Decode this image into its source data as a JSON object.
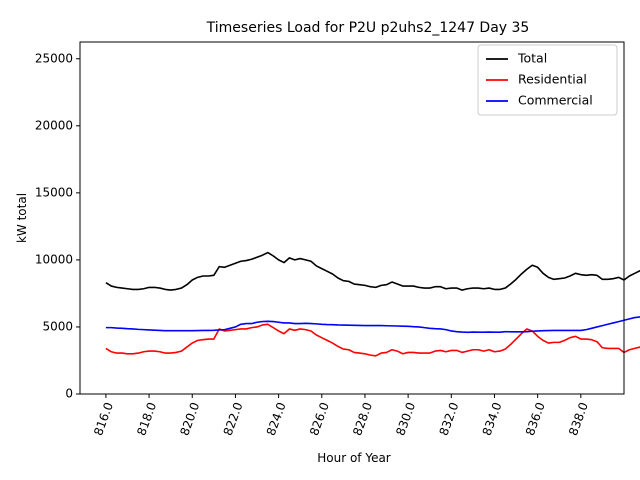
{
  "chart_data": {
    "type": "line",
    "title": "Timeseries Load for P2U p2uhs2_1247  Day 35",
    "xlabel": "Hour of Year",
    "ylabel": "kW total",
    "xlim": [
      814.8,
      840.0
    ],
    "ylim": [
      0,
      26250
    ],
    "x_ticks": [
      816,
      818,
      820,
      822,
      824,
      826,
      828,
      830,
      832,
      834,
      836,
      838
    ],
    "x_tick_labels": [
      "816.0",
      "818.0",
      "820.0",
      "822.0",
      "824.0",
      "826.0",
      "828.0",
      "830.0",
      "832.0",
      "834.0",
      "836.0",
      "838.0"
    ],
    "y_ticks": [
      0,
      5000,
      10000,
      15000,
      20000,
      25000
    ],
    "y_tick_labels": [
      "0",
      "5000",
      "10000",
      "15000",
      "20000",
      "25000"
    ],
    "grid": false,
    "legend_position": "top-right",
    "x_start": 816.0,
    "x_step": 0.25,
    "series": [
      {
        "name": "Total",
        "color": "#000000",
        "values": [
          8300,
          8050,
          7950,
          7900,
          7850,
          7800,
          7800,
          7850,
          7950,
          7950,
          7900,
          7800,
          7750,
          7800,
          7900,
          8150,
          8500,
          8700,
          8800,
          8800,
          8850,
          9500,
          9450,
          9600,
          9750,
          9900,
          9950,
          10050,
          10200,
          10350,
          10550,
          10300,
          10000,
          9800,
          10150,
          10000,
          10100,
          10000,
          9900,
          9550,
          9350,
          9150,
          8950,
          8650,
          8450,
          8400,
          8200,
          8150,
          8100,
          8000,
          7950,
          8100,
          8150,
          8350,
          8200,
          8050,
          8050,
          8050,
          7950,
          7900,
          7900,
          8000,
          8000,
          7850,
          7900,
          7900,
          7750,
          7850,
          7900,
          7900,
          7850,
          7900,
          7800,
          7800,
          7900,
          8200,
          8550,
          8950,
          9300,
          9600,
          9450,
          9000,
          8700,
          8550,
          8600,
          8650,
          8800,
          9000,
          8900,
          8850,
          8900,
          8850,
          8550,
          8550,
          8600,
          8700,
          8500,
          8800,
          9000,
          9200
        ]
      },
      {
        "name": "Residential",
        "color": "#ff0000",
        "values": [
          3400,
          3150,
          3050,
          3050,
          3000,
          3000,
          3050,
          3150,
          3200,
          3200,
          3150,
          3050,
          3050,
          3100,
          3200,
          3500,
          3800,
          4000,
          4050,
          4100,
          4100,
          4850,
          4700,
          4750,
          4800,
          4850,
          4850,
          4950,
          5000,
          5150,
          5200,
          4950,
          4700,
          4500,
          4850,
          4750,
          4850,
          4800,
          4700,
          4400,
          4200,
          4000,
          3800,
          3550,
          3350,
          3300,
          3100,
          3050,
          3000,
          2900,
          2850,
          3050,
          3100,
          3300,
          3200,
          3000,
          3100,
          3100,
          3050,
          3050,
          3050,
          3200,
          3250,
          3150,
          3250,
          3250,
          3100,
          3200,
          3300,
          3300,
          3200,
          3300,
          3150,
          3200,
          3350,
          3700,
          4100,
          4500,
          4850,
          4700,
          4300,
          4000,
          3800,
          3850,
          3850,
          4000,
          4200,
          4300,
          4100,
          4100,
          4050,
          3900,
          3450,
          3400,
          3400,
          3400,
          3100,
          3300,
          3400,
          3500
        ]
      },
      {
        "name": "Commercial",
        "color": "#0000ff",
        "values": [
          4950,
          4950,
          4920,
          4900,
          4870,
          4850,
          4820,
          4800,
          4780,
          4760,
          4740,
          4720,
          4720,
          4720,
          4720,
          4720,
          4720,
          4730,
          4740,
          4740,
          4750,
          4780,
          4800,
          4900,
          5000,
          5200,
          5250,
          5250,
          5350,
          5400,
          5420,
          5400,
          5350,
          5300,
          5300,
          5250,
          5250,
          5270,
          5250,
          5230,
          5200,
          5180,
          5170,
          5150,
          5140,
          5130,
          5120,
          5110,
          5100,
          5100,
          5100,
          5100,
          5090,
          5080,
          5070,
          5060,
          5050,
          5020,
          5000,
          4950,
          4900,
          4870,
          4850,
          4800,
          4700,
          4650,
          4620,
          4600,
          4620,
          4610,
          4610,
          4620,
          4610,
          4610,
          4650,
          4640,
          4640,
          4640,
          4650,
          4680,
          4700,
          4720,
          4730,
          4740,
          4740,
          4740,
          4740,
          4740,
          4740,
          4800,
          4900,
          5000,
          5100,
          5200,
          5300,
          5400,
          5500,
          5600,
          5700,
          5750
        ]
      }
    ]
  }
}
